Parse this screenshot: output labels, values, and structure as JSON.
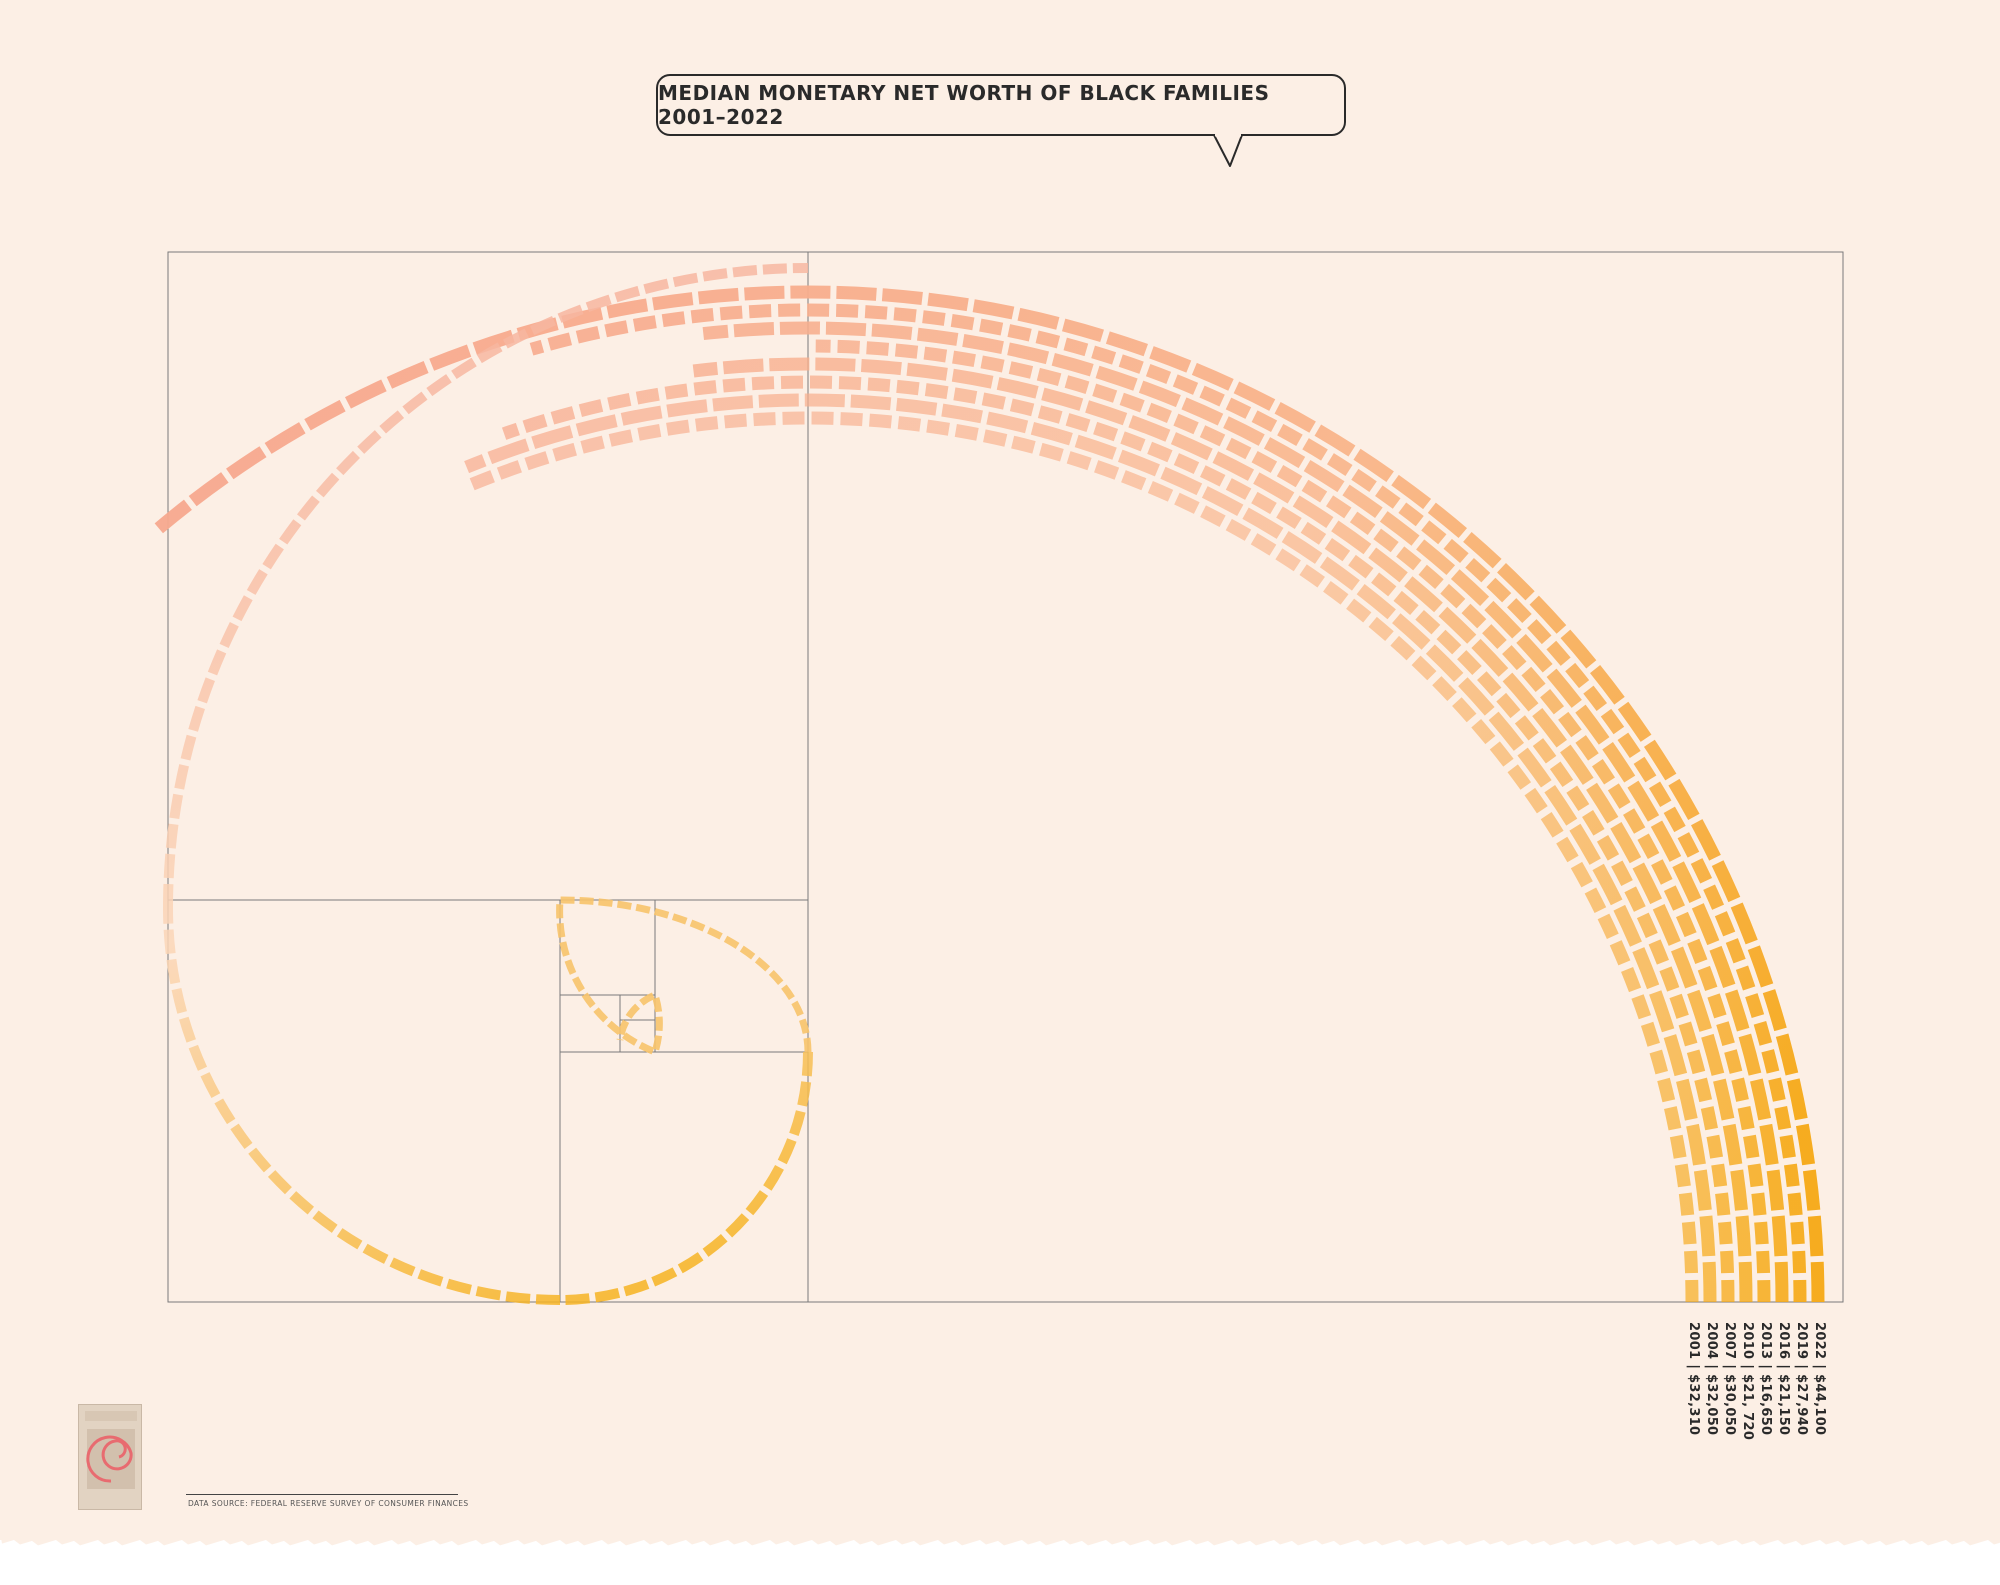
{
  "title": "MEDIAN MONETARY NET WORTH OF BLACK FAMILIES 2001–2022",
  "source": "DATA SOURCE: FEDERAL RESERVE SURVEY OF CONSUMER FINANCES",
  "colors": {
    "paper": "#fcefe5",
    "ink": "#2a2a2a",
    "gradient_start": "#f7a98f",
    "gradient_end": "#f6a915"
  },
  "chart_data": {
    "type": "spiral",
    "series_order": "2022 outermost to 2001 innermost",
    "series": [
      {
        "year": "2022",
        "value": 44100,
        "label": "2022 | $44,100"
      },
      {
        "year": "2019",
        "value": 27940,
        "label": "2019 | $27,940"
      },
      {
        "year": "2016",
        "value": 21150,
        "label": "2016 | $21,150"
      },
      {
        "year": "2013",
        "value": 16650,
        "label": "2013 | $16,650"
      },
      {
        "year": "2010",
        "value": 21720,
        "label": "2010 | $21, 720"
      },
      {
        "year": "2007",
        "value": 30050,
        "label": "2007 | $30,050"
      },
      {
        "year": "2004",
        "value": 32050,
        "label": "2004 | $32,050"
      },
      {
        "year": "2001",
        "value": 32310,
        "label": "2001 | $32,310"
      }
    ],
    "title": "MEDIAN MONETARY NET WORTH OF BLACK FAMILIES 2001–2022",
    "legend": "bottom-right, rotated"
  }
}
